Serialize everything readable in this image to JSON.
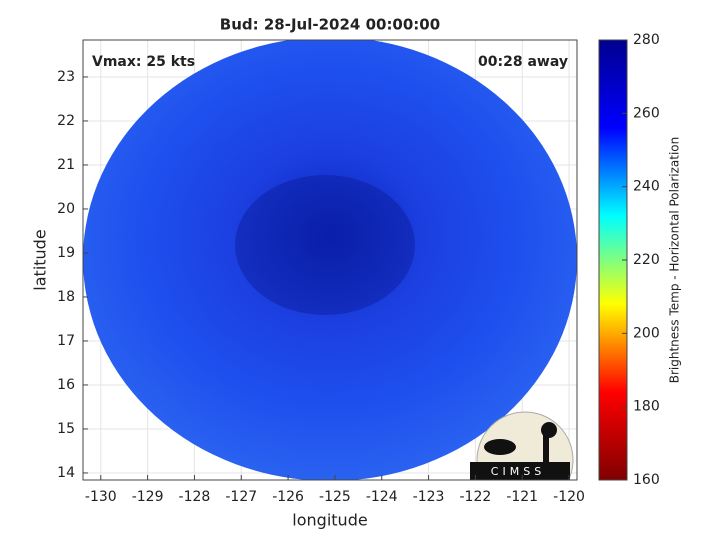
{
  "chart_data": {
    "type": "map",
    "title": "Bud: 28-Jul-2024 00:00:00",
    "annotations": [
      "Vmax: 25 kts",
      "00:28 away"
    ],
    "x_label": "longitude",
    "y_label": "latitude",
    "xlim": [
      -130.38,
      -119.83
    ],
    "xticks": [
      -130,
      -129,
      -128,
      -127,
      -126,
      -125,
      -124,
      -123,
      -122,
      -121,
      -120
    ],
    "ylim": [
      13.84,
      23.84
    ],
    "yticks": [
      14,
      15,
      16,
      17,
      18,
      19,
      20,
      21,
      22,
      23
    ],
    "grid": true,
    "colorbar_label": "Brightness Temp - Horizontal Polarization",
    "clim": [
      160,
      280
    ],
    "cticks": [
      160,
      180,
      200,
      220,
      240,
      260,
      280
    ],
    "colormap": [
      "#800000",
      "#ff0000",
      "#ffff00",
      "#00ffff",
      "#0000ff",
      "#00008f"
    ],
    "logo_text": "CIMSS"
  }
}
